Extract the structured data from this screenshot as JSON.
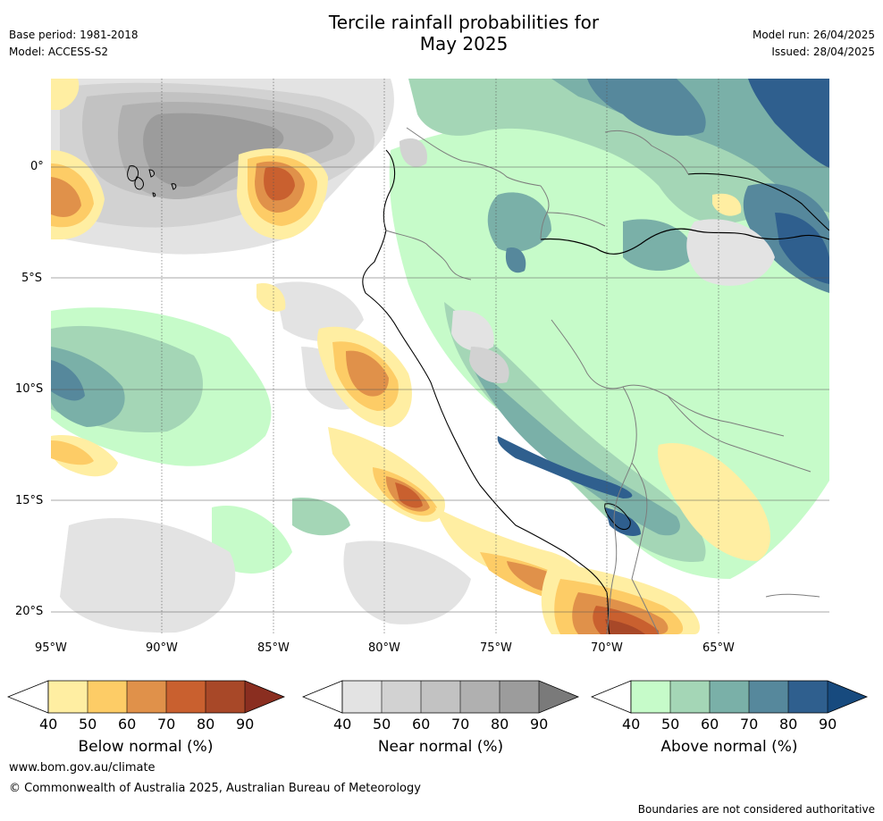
{
  "header": {
    "title_line1": "Tercile rainfall probabilities for",
    "title_line2": "May 2025",
    "base_period": "Base period: 1981-2018",
    "model": "Model: ACCESS-S2",
    "model_run": "Model run: 26/04/2025",
    "issued": "Issued: 28/04/2025"
  },
  "map": {
    "lat_labels": [
      "0°",
      "5°S",
      "10°S",
      "15°S",
      "20°S"
    ],
    "lon_labels": [
      "95°W",
      "90°W",
      "85°W",
      "80°W",
      "75°W",
      "70°W",
      "65°W"
    ]
  },
  "colorbars": [
    {
      "title": "Below normal (%)",
      "ticks": [
        "40",
        "50",
        "60",
        "70",
        "80",
        "90"
      ],
      "colors": [
        "#ffeea2",
        "#fdcc66",
        "#e0914a",
        "#c9602f",
        "#a84828",
        "#8a2e20"
      ]
    },
    {
      "title": "Near normal (%)",
      "ticks": [
        "40",
        "50",
        "60",
        "70",
        "80",
        "90"
      ],
      "colors": [
        "#e3e3e3",
        "#d2d2d2",
        "#c2c2c2",
        "#b0b0b0",
        "#9c9c9c",
        "#7a7a7a"
      ]
    },
    {
      "title": "Above normal (%)",
      "ticks": [
        "40",
        "50",
        "60",
        "70",
        "80",
        "90"
      ],
      "colors": [
        "#c6fbc9",
        "#a4d6b6",
        "#7ab0a8",
        "#56889c",
        "#2f5f8e",
        "#174a7e"
      ]
    }
  ],
  "footer": {
    "url": "www.bom.gov.au/climate",
    "copyright": "© Commonwealth of Australia 2025, Australian Bureau of Meteorology",
    "disclaimer": "Boundaries are not considered authoritative"
  }
}
